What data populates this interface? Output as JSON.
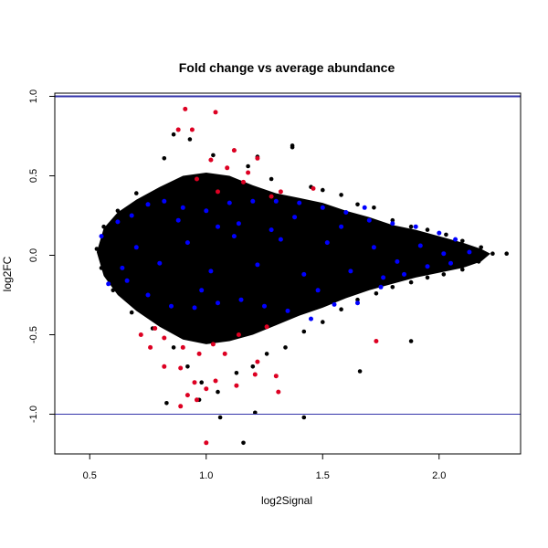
{
  "chart_data": {
    "type": "scatter",
    "title": "Fold change vs average abundance",
    "xlabel": "log2Signal",
    "ylabel": "log2FC",
    "xlim": [
      0.35,
      2.35
    ],
    "ylim": [
      -1.25,
      1.02
    ],
    "x_ticks": [
      0.5,
      1.0,
      1.5,
      2.0
    ],
    "x_tick_labels": [
      "0.5",
      "1.0",
      "1.5",
      "2.0"
    ],
    "y_ticks": [
      -1.0,
      -0.5,
      0.0,
      0.5,
      1.0
    ],
    "y_tick_labels": [
      "-1.0",
      "-0.5",
      "0.0",
      "0.5",
      "1.0"
    ],
    "grid": false,
    "legend": "none",
    "reference_lines": {
      "y": [
        1.0,
        -1.0
      ],
      "color": "#3333aa"
    },
    "colors": {
      "background": "#000000",
      "blue": "#0000ff",
      "red": "#dd0022"
    },
    "series": [
      {
        "values": [
          [
            0.82,
            0.61
          ],
          [
            0.93,
            0.73
          ],
          [
            1.03,
            0.63
          ],
          [
            1.12,
            0.66
          ],
          [
            1.18,
            0.56
          ],
          [
            1.28,
            0.48
          ],
          [
            1.37,
            0.68
          ],
          [
            1.45,
            0.43
          ],
          [
            1.5,
            0.41
          ],
          [
            1.58,
            0.38
          ],
          [
            1.65,
            0.32
          ],
          [
            1.72,
            0.3
          ],
          [
            1.8,
            0.22
          ],
          [
            1.88,
            0.18
          ],
          [
            1.95,
            0.16
          ],
          [
            2.03,
            0.13
          ],
          [
            2.1,
            0.09
          ],
          [
            2.18,
            0.05
          ],
          [
            2.23,
            0.01
          ],
          [
            2.29,
            0.01
          ],
          [
            0.7,
            0.39
          ],
          [
            0.62,
            0.28
          ],
          [
            0.56,
            0.18
          ],
          [
            0.53,
            0.04
          ],
          [
            0.55,
            -0.08
          ],
          [
            0.6,
            -0.22
          ],
          [
            0.68,
            -0.36
          ],
          [
            0.77,
            -0.46
          ],
          [
            0.86,
            -0.58
          ],
          [
            0.92,
            -0.7
          ],
          [
            0.98,
            -0.8
          ],
          [
            1.05,
            -0.86
          ],
          [
            1.13,
            -0.74
          ],
          [
            1.2,
            -0.7
          ],
          [
            1.26,
            -0.62
          ],
          [
            1.34,
            -0.58
          ],
          [
            1.42,
            -0.48
          ],
          [
            1.5,
            -0.42
          ],
          [
            1.58,
            -0.34
          ],
          [
            1.65,
            -0.28
          ],
          [
            1.73,
            -0.24
          ],
          [
            1.8,
            -0.2
          ],
          [
            1.88,
            -0.17
          ],
          [
            1.95,
            -0.14
          ],
          [
            2.02,
            -0.12
          ],
          [
            2.1,
            -0.09
          ],
          [
            2.17,
            -0.04
          ],
          [
            0.83,
            -0.93
          ],
          [
            0.97,
            -0.91
          ],
          [
            1.06,
            -1.02
          ],
          [
            1.16,
            -1.18
          ],
          [
            1.21,
            -0.99
          ],
          [
            1.42,
            -1.02
          ],
          [
            1.66,
            -0.73
          ],
          [
            1.88,
            -0.54
          ],
          [
            1.37,
            0.69
          ],
          [
            1.22,
            0.62
          ],
          [
            0.86,
            0.76
          ],
          [
            0.88,
            0.79
          ],
          [
            1.09,
            0.45
          ]
        ]
      },
      {
        "values": [
          [
            0.55,
            0.12
          ],
          [
            0.62,
            0.21
          ],
          [
            0.68,
            0.25
          ],
          [
            0.75,
            0.32
          ],
          [
            0.82,
            0.34
          ],
          [
            0.9,
            0.3
          ],
          [
            1.0,
            0.28
          ],
          [
            1.1,
            0.33
          ],
          [
            1.2,
            0.34
          ],
          [
            1.3,
            0.34
          ],
          [
            1.4,
            0.33
          ],
          [
            1.5,
            0.3
          ],
          [
            1.6,
            0.27
          ],
          [
            1.7,
            0.22
          ],
          [
            1.8,
            0.2
          ],
          [
            1.9,
            0.18
          ],
          [
            2.0,
            0.14
          ],
          [
            2.07,
            0.1
          ],
          [
            2.13,
            0.02
          ],
          [
            0.58,
            -0.18
          ],
          [
            0.66,
            -0.16
          ],
          [
            0.75,
            -0.25
          ],
          [
            0.85,
            -0.32
          ],
          [
            0.95,
            -0.33
          ],
          [
            1.05,
            -0.3
          ],
          [
            1.15,
            -0.28
          ],
          [
            1.25,
            -0.32
          ],
          [
            1.35,
            -0.35
          ],
          [
            1.45,
            -0.4
          ],
          [
            1.55,
            -0.31
          ],
          [
            1.65,
            -0.3
          ],
          [
            1.75,
            -0.2
          ],
          [
            1.85,
            -0.12
          ],
          [
            1.95,
            -0.07
          ],
          [
            2.05,
            -0.05
          ],
          [
            0.7,
            0.05
          ],
          [
            0.8,
            -0.05
          ],
          [
            0.92,
            0.08
          ],
          [
            1.02,
            -0.1
          ],
          [
            1.12,
            0.12
          ],
          [
            1.22,
            -0.06
          ],
          [
            1.32,
            0.1
          ],
          [
            1.42,
            -0.12
          ],
          [
            1.52,
            0.08
          ],
          [
            1.62,
            -0.1
          ],
          [
            1.72,
            0.05
          ],
          [
            1.82,
            -0.04
          ],
          [
            1.92,
            0.06
          ],
          [
            2.02,
            0.01
          ],
          [
            1.14,
            0.2
          ],
          [
            1.05,
            0.18
          ],
          [
            0.88,
            0.22
          ],
          [
            1.38,
            0.24
          ],
          [
            1.48,
            -0.22
          ],
          [
            1.58,
            0.18
          ],
          [
            1.68,
            0.3
          ],
          [
            0.64,
            -0.08
          ],
          [
            1.76,
            -0.14
          ],
          [
            1.28,
            0.16
          ],
          [
            0.98,
            -0.22
          ]
        ]
      },
      {
        "values": [
          [
            0.91,
            0.92
          ],
          [
            1.04,
            0.9
          ],
          [
            0.88,
            0.79
          ],
          [
            0.94,
            0.79
          ],
          [
            1.12,
            0.66
          ],
          [
            1.02,
            0.6
          ],
          [
            1.09,
            0.55
          ],
          [
            1.18,
            0.52
          ],
          [
            1.22,
            0.61
          ],
          [
            0.96,
            0.48
          ],
          [
            1.16,
            0.46
          ],
          [
            1.32,
            0.4
          ],
          [
            1.46,
            0.42
          ],
          [
            1.28,
            0.37
          ],
          [
            1.05,
            0.4
          ],
          [
            0.78,
            -0.46
          ],
          [
            0.82,
            -0.52
          ],
          [
            0.9,
            -0.58
          ],
          [
            0.97,
            -0.62
          ],
          [
            1.03,
            -0.56
          ],
          [
            0.76,
            -0.58
          ],
          [
            0.82,
            -0.7
          ],
          [
            0.89,
            -0.71
          ],
          [
            0.95,
            -0.8
          ],
          [
            1.0,
            -0.84
          ],
          [
            1.04,
            -0.79
          ],
          [
            1.21,
            -0.75
          ],
          [
            1.22,
            -0.67
          ],
          [
            1.3,
            -0.76
          ],
          [
            1.31,
            -0.86
          ],
          [
            0.89,
            -0.95
          ],
          [
            0.96,
            -0.91
          ],
          [
            1.73,
            -0.54
          ],
          [
            1.0,
            -1.18
          ],
          [
            0.92,
            -0.88
          ],
          [
            1.08,
            -0.62
          ],
          [
            1.14,
            -0.5
          ],
          [
            0.72,
            -0.5
          ],
          [
            1.26,
            -0.45
          ],
          [
            1.13,
            -0.82
          ]
        ]
      }
    ]
  }
}
